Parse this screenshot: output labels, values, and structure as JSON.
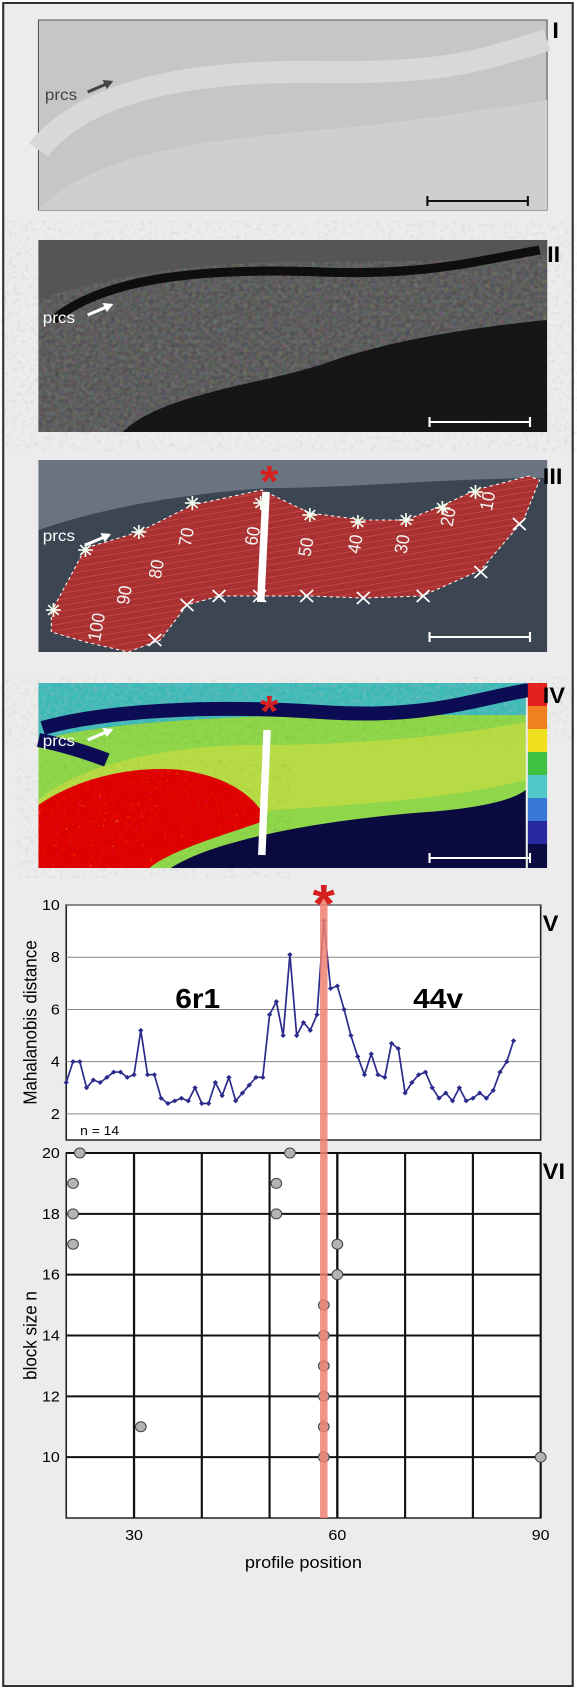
{
  "panels": [
    {
      "numeral": "I",
      "label": "prcs"
    },
    {
      "numeral": "II",
      "label": "prcs"
    },
    {
      "numeral": "III",
      "label": "prcs",
      "profile_labels": [
        10,
        20,
        30,
        40,
        50,
        60,
        70,
        80,
        90,
        100
      ]
    },
    {
      "numeral": "IV",
      "label": "prcs"
    }
  ],
  "marker": "*",
  "chart_data": [
    {
      "type": "line",
      "numeral": "V",
      "y_label": "Mahalanobis distance",
      "annotations": [
        "6r1",
        "44v",
        "n = 14"
      ],
      "x": [
        20,
        21,
        22,
        23,
        24,
        25,
        26,
        27,
        28,
        29,
        30,
        31,
        32,
        33,
        34,
        35,
        36,
        37,
        38,
        39,
        40,
        41,
        42,
        43,
        44,
        45,
        46,
        47,
        48,
        49,
        50,
        51,
        52,
        53,
        54,
        55,
        56,
        57,
        58,
        59,
        60,
        61,
        62,
        63,
        64,
        65,
        66,
        67,
        68,
        69,
        70,
        71,
        72,
        73,
        74,
        75,
        76,
        77,
        78,
        79,
        80,
        81,
        82,
        83,
        84,
        85,
        86
      ],
      "values": [
        3.2,
        4.0,
        4.0,
        3.0,
        3.3,
        3.2,
        3.4,
        3.6,
        3.6,
        3.4,
        3.5,
        5.2,
        3.5,
        3.5,
        2.6,
        2.4,
        2.5,
        2.6,
        2.5,
        3.0,
        2.4,
        2.4,
        3.2,
        2.7,
        3.4,
        2.5,
        2.8,
        3.1,
        3.4,
        3.4,
        5.8,
        6.3,
        5.0,
        8.1,
        5.0,
        5.5,
        5.2,
        5.8,
        9.4,
        6.8,
        6.9,
        6.0,
        5.0,
        4.2,
        3.5,
        4.3,
        3.5,
        3.4,
        4.7,
        4.5,
        2.8,
        3.2,
        3.5,
        3.6,
        3.0,
        2.6,
        2.8,
        2.5,
        3.0,
        2.5,
        2.6,
        2.8,
        2.6,
        2.9,
        3.6,
        4.0,
        4.8
      ],
      "color": "#2b2b8c",
      "xlim": [
        20,
        90
      ],
      "ylim": [
        1,
        10
      ],
      "yticks": [
        2,
        4,
        6,
        8,
        10
      ],
      "grid": true,
      "highlight_x": 58,
      "highlight_color": "#f08070"
    },
    {
      "type": "scatter",
      "numeral": "VI",
      "x_label": "profile position",
      "y_label": "block size n",
      "x": [
        22,
        21,
        21,
        21,
        53,
        51,
        51,
        31,
        58,
        58,
        58,
        58,
        58,
        58,
        60,
        60,
        90
      ],
      "values": [
        20,
        19,
        18,
        17,
        20,
        19,
        18,
        11,
        15,
        14,
        13,
        12,
        11,
        10,
        17,
        16,
        10
      ],
      "color": "#b4b4b4",
      "xlim": [
        20,
        90
      ],
      "ylim": [
        8,
        20
      ],
      "xticks": [
        30,
        60,
        90
      ],
      "yticks": [
        10,
        12,
        14,
        16,
        18,
        20
      ],
      "grid": true
    }
  ]
}
